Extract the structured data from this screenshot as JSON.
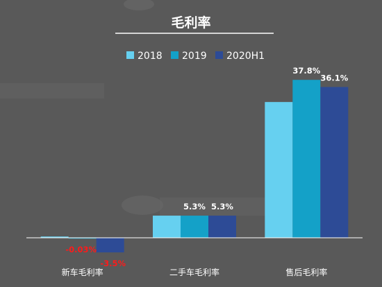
{
  "chart_data": {
    "type": "bar",
    "title": "毛利率",
    "categories": [
      "新车毛利率",
      "二手车毛利率",
      "售后毛利率"
    ],
    "series": [
      {
        "name": "2018",
        "values": [
          0.3,
          5.3,
          32.5
        ],
        "color": "#66d0f0",
        "labels": [
          "",
          "",
          ""
        ]
      },
      {
        "name": "2019",
        "values": [
          -0.03,
          5.3,
          37.8
        ],
        "color": "#14a1c8",
        "labels": [
          "-0.03%",
          "5.3%",
          "37.8%"
        ]
      },
      {
        "name": "2020H1",
        "values": [
          -3.5,
          5.3,
          36.1
        ],
        "color": "#2d4b96",
        "labels": [
          "-3.5%",
          "5.3%",
          "36.1%"
        ]
      }
    ],
    "ylim": [
      -4.5,
      38.5
    ],
    "grid": false,
    "legend_position": "top-center"
  },
  "colors": {
    "background": "#595959",
    "negative_label": "#ff1a1a",
    "axis": "#ffffff"
  }
}
